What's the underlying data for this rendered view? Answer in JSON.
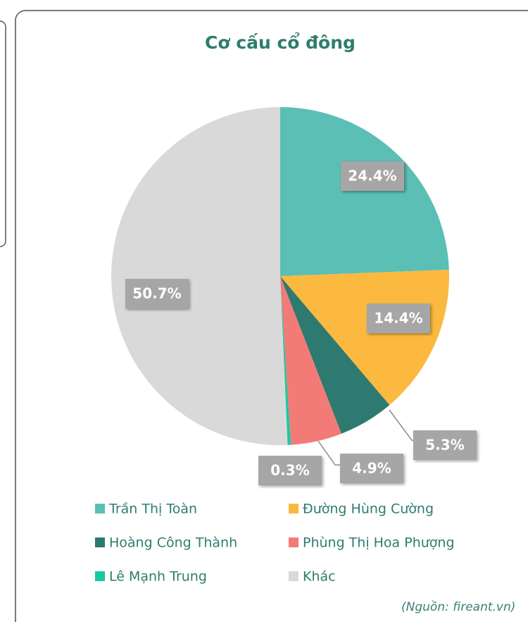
{
  "chart_data": {
    "type": "pie",
    "title": "Cơ cấu cổ đông",
    "categories": [
      "Trần Thị Toàn",
      "Đường Hùng Cường",
      "Hoàng Công Thành",
      "Phùng Thị Hoa Phượng",
      "Lê Mạnh Trung",
      "Khác"
    ],
    "values": [
      24.4,
      14.4,
      5.3,
      4.9,
      0.3,
      50.7
    ],
    "value_labels": [
      "24.4%",
      "14.4%",
      "5.3%",
      "4.9%",
      "0.3%",
      "50.7%"
    ],
    "colors": [
      "#5bbfb6",
      "#fbb93f",
      "#2e7a70",
      "#f27b78",
      "#18c9a0",
      "#d9d9d9"
    ],
    "source": "(Nguồn: fireant.vn)"
  }
}
